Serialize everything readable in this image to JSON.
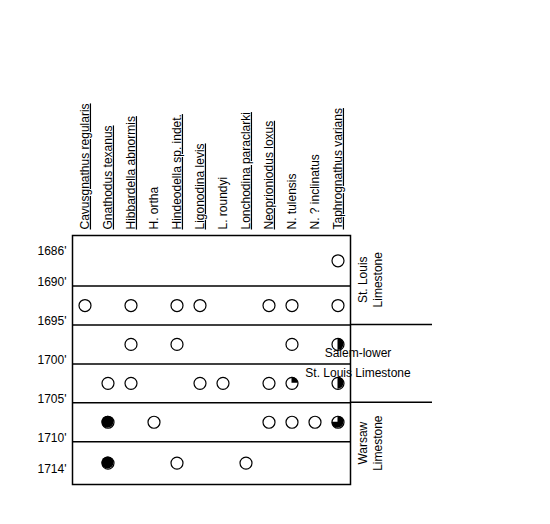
{
  "chart_data": {
    "type": "occurrence",
    "species": [
      "Cavusgnathus regularis",
      "Gnathodus texanus",
      "Hibbardella abnormis",
      "H. ortha",
      "Hindeodella sp. indet.",
      "Ligonodina levis",
      "L. roundyi",
      "Lonchodina paraclarki",
      "Neoprioniodus loxus",
      "N. tulensis",
      "N. ? inclinatus",
      "Taphrognathus varians"
    ],
    "ylim": [
      1684,
      1716
    ],
    "yticks": [
      {
        "value": 1686,
        "label": "1686'"
      },
      {
        "value": 1690,
        "label": "1690'"
      },
      {
        "value": 1695,
        "label": "1695'"
      },
      {
        "value": 1700,
        "label": "1700'"
      },
      {
        "value": 1705,
        "label": "1705'"
      },
      {
        "value": 1710,
        "label": "1710'"
      },
      {
        "value": 1714,
        "label": "1714'"
      }
    ],
    "samples": [
      {
        "top": 1684,
        "bottom": 1690.5,
        "occurrences": [
          {
            "species": "Taphrognathus varians",
            "filled": 0
          }
        ]
      },
      {
        "top": 1690.5,
        "bottom": 1695.5,
        "occurrences": [
          {
            "species": "Cavusgnathus regularis",
            "filled": 0
          },
          {
            "species": "Hibbardella abnormis",
            "filled": 0
          },
          {
            "species": "Hindeodella sp. indet.",
            "filled": 0
          },
          {
            "species": "Ligonodina levis",
            "filled": 0
          },
          {
            "species": "Neoprioniodus loxus",
            "filled": 0
          },
          {
            "species": "N. tulensis",
            "filled": 0
          },
          {
            "species": "Taphrognathus varians",
            "filled": 0
          }
        ]
      },
      {
        "top": 1695.5,
        "bottom": 1700.5,
        "occurrences": [
          {
            "species": "Hibbardella abnormis",
            "filled": 0
          },
          {
            "species": "Hindeodella sp. indet.",
            "filled": 0
          },
          {
            "species": "N. tulensis",
            "filled": 0
          },
          {
            "species": "Taphrognathus varians",
            "filled": 0.5
          }
        ]
      },
      {
        "top": 1700.5,
        "bottom": 1705.5,
        "occurrences": [
          {
            "species": "Gnathodus texanus",
            "filled": 0
          },
          {
            "species": "Hibbardella abnormis",
            "filled": 0
          },
          {
            "species": "Ligonodina levis",
            "filled": 0
          },
          {
            "species": "L. roundyi",
            "filled": 0
          },
          {
            "species": "Neoprioniodus loxus",
            "filled": 0
          },
          {
            "species": "N. tulensis",
            "filled": 0.25
          },
          {
            "species": "Taphrognathus varians",
            "filled": 0.5
          }
        ]
      },
      {
        "top": 1705.5,
        "bottom": 1710.5,
        "occurrences": [
          {
            "species": "Gnathodus texanus",
            "filled": 1
          },
          {
            "species": "H. ortha",
            "filled": 0
          },
          {
            "species": "Neoprioniodus loxus",
            "filled": 0
          },
          {
            "species": "N. tulensis",
            "filled": 0
          },
          {
            "species": "N. ? inclinatus",
            "filled": 0
          },
          {
            "species": "Taphrognathus varians",
            "filled": 0.75
          }
        ]
      },
      {
        "top": 1710.5,
        "bottom": 1716,
        "occurrences": [
          {
            "species": "Gnathodus texanus",
            "filled": 1
          },
          {
            "species": "Hindeodella sp. indet.",
            "filled": 0
          },
          {
            "species": "Lonchodina paraclarki",
            "filled": 0
          }
        ]
      }
    ],
    "formations": [
      {
        "lines": [
          "St. Louis",
          "Limestone"
        ],
        "top": 1684,
        "bottom": 1695.5,
        "orientation": "vertical"
      },
      {
        "lines": [
          "Salem-lower",
          "St. Louis Limestone"
        ],
        "top": 1695.5,
        "bottom": 1705.5,
        "orientation": "horizontal"
      },
      {
        "lines": [
          "Warsaw",
          "Limestone"
        ],
        "top": 1705.5,
        "bottom": 1716,
        "orientation": "vertical"
      }
    ]
  }
}
